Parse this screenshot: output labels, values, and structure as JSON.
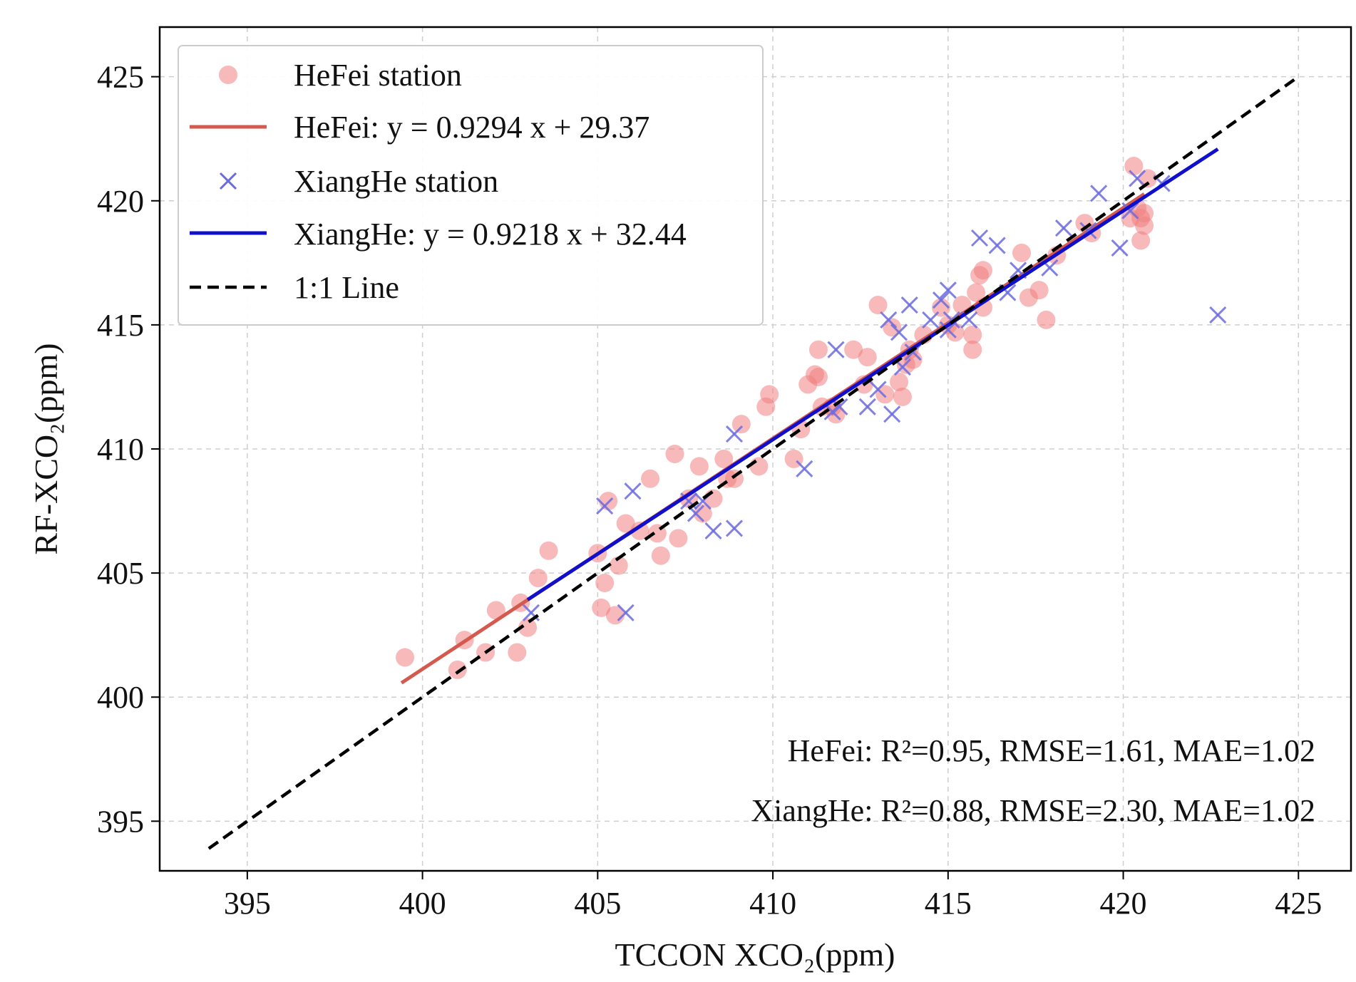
{
  "chart_data": {
    "type": "scatter",
    "xlabel": "TCCON XCO₂(ppm)",
    "ylabel": "RF-XCO₂(ppm)",
    "xlim": [
      392.5,
      426.5
    ],
    "ylim": [
      393,
      427
    ],
    "xticks": [
      395,
      400,
      405,
      410,
      415,
      420,
      425
    ],
    "yticks": [
      395,
      400,
      405,
      410,
      415,
      420,
      425
    ],
    "grid": true,
    "legend_position": "top-left",
    "series": [
      {
        "name": "HeFei station",
        "kind": "points",
        "marker": "circle",
        "color": "#f08080",
        "points": [
          [
            399.5,
            401.6
          ],
          [
            401.0,
            401.1
          ],
          [
            401.2,
            402.3
          ],
          [
            401.8,
            401.8
          ],
          [
            402.1,
            403.5
          ],
          [
            402.7,
            401.8
          ],
          [
            402.8,
            403.8
          ],
          [
            403.0,
            402.8
          ],
          [
            403.3,
            404.8
          ],
          [
            403.6,
            405.9
          ],
          [
            405.0,
            405.8
          ],
          [
            405.1,
            403.6
          ],
          [
            405.2,
            404.6
          ],
          [
            405.3,
            407.9
          ],
          [
            405.5,
            403.3
          ],
          [
            405.6,
            405.3
          ],
          [
            405.8,
            407.0
          ],
          [
            406.2,
            406.7
          ],
          [
            406.5,
            408.8
          ],
          [
            406.7,
            406.6
          ],
          [
            406.8,
            405.7
          ],
          [
            407.2,
            409.8
          ],
          [
            407.3,
            406.4
          ],
          [
            407.6,
            408.0
          ],
          [
            407.9,
            409.3
          ],
          [
            408.0,
            407.4
          ],
          [
            408.3,
            408.0
          ],
          [
            408.6,
            409.6
          ],
          [
            408.7,
            408.8
          ],
          [
            408.9,
            408.8
          ],
          [
            409.1,
            411.0
          ],
          [
            409.6,
            409.3
          ],
          [
            409.8,
            411.7
          ],
          [
            409.9,
            412.2
          ],
          [
            410.6,
            409.6
          ],
          [
            410.8,
            410.8
          ],
          [
            411.0,
            412.6
          ],
          [
            411.2,
            413.0
          ],
          [
            411.3,
            414.0
          ],
          [
            411.3,
            412.9
          ],
          [
            411.4,
            411.7
          ],
          [
            411.7,
            411.7
          ],
          [
            411.8,
            411.4
          ],
          [
            412.3,
            414.0
          ],
          [
            412.6,
            412.6
          ],
          [
            412.7,
            413.7
          ],
          [
            413.0,
            415.8
          ],
          [
            413.2,
            412.2
          ],
          [
            413.4,
            414.9
          ],
          [
            413.6,
            412.7
          ],
          [
            413.7,
            412.1
          ],
          [
            413.8,
            413.4
          ],
          [
            413.9,
            414.0
          ],
          [
            414.0,
            413.6
          ],
          [
            414.3,
            414.6
          ],
          [
            414.8,
            415.7
          ],
          [
            415.0,
            415.0
          ],
          [
            415.2,
            414.7
          ],
          [
            415.4,
            415.8
          ],
          [
            415.7,
            414.6
          ],
          [
            415.7,
            414.0
          ],
          [
            415.8,
            416.3
          ],
          [
            415.9,
            417.0
          ],
          [
            416.0,
            415.7
          ],
          [
            416.0,
            417.2
          ],
          [
            417.1,
            417.9
          ],
          [
            417.3,
            416.1
          ],
          [
            417.6,
            416.4
          ],
          [
            417.8,
            415.2
          ],
          [
            418.1,
            417.8
          ],
          [
            418.9,
            419.1
          ],
          [
            419.1,
            418.7
          ],
          [
            420.2,
            419.3
          ],
          [
            420.3,
            421.4
          ],
          [
            420.4,
            419.7
          ],
          [
            420.5,
            418.4
          ],
          [
            420.5,
            419.3
          ],
          [
            420.6,
            419.0
          ],
          [
            420.6,
            419.5
          ],
          [
            420.7,
            420.9
          ]
        ]
      },
      {
        "name": "HeFei: y = 0.9294 x + 29.37",
        "kind": "line",
        "color": "#d45a50",
        "x_range": [
          399.4,
          420.6
        ]
      },
      {
        "name": "XiangHe station",
        "kind": "points",
        "marker": "x",
        "color": "#6b6be0",
        "points": [
          [
            403.1,
            403.4
          ],
          [
            405.2,
            407.7
          ],
          [
            405.8,
            403.4
          ],
          [
            406.0,
            408.3
          ],
          [
            407.6,
            407.9
          ],
          [
            407.8,
            407.4
          ],
          [
            408.0,
            407.9
          ],
          [
            408.3,
            406.7
          ],
          [
            408.9,
            406.8
          ],
          [
            408.9,
            410.6
          ],
          [
            410.9,
            409.2
          ],
          [
            411.7,
            411.5
          ],
          [
            411.8,
            414.0
          ],
          [
            411.9,
            411.7
          ],
          [
            412.7,
            411.7
          ],
          [
            413.0,
            412.4
          ],
          [
            413.3,
            415.2
          ],
          [
            413.4,
            411.4
          ],
          [
            413.6,
            414.7
          ],
          [
            413.7,
            413.3
          ],
          [
            413.9,
            415.8
          ],
          [
            414.0,
            413.9
          ],
          [
            414.5,
            415.2
          ],
          [
            414.8,
            416.0
          ],
          [
            415.0,
            416.4
          ],
          [
            415.0,
            414.8
          ],
          [
            415.1,
            415.2
          ],
          [
            415.6,
            415.2
          ],
          [
            415.9,
            418.5
          ],
          [
            416.4,
            418.2
          ],
          [
            416.7,
            416.3
          ],
          [
            417.0,
            417.2
          ],
          [
            417.9,
            417.3
          ],
          [
            418.3,
            418.9
          ],
          [
            419.0,
            418.8
          ],
          [
            419.3,
            420.3
          ],
          [
            419.9,
            418.1
          ],
          [
            420.2,
            419.6
          ],
          [
            420.4,
            420.9
          ],
          [
            421.1,
            420.7
          ],
          [
            422.7,
            415.4
          ]
        ]
      },
      {
        "name": "XiangHe: y = 0.9218 x + 32.44",
        "kind": "line",
        "color": "#1010cc",
        "x_range": [
          403.0,
          422.7
        ]
      },
      {
        "name": "1:1 Line",
        "kind": "line",
        "color": "#000000",
        "x_range": [
          393.9,
          425.0
        ]
      }
    ],
    "fits": {
      "HeFei": {
        "slope": 0.9294,
        "intercept": 29.37
      },
      "XiangHe": {
        "slope": 0.9218,
        "intercept": 32.44
      },
      "identity": {
        "slope": 1,
        "intercept": 0
      }
    },
    "annotations": [
      "HeFei: R²=0.95, RMSE=1.61, MAE=1.02",
      "XiangHe: R²=0.88, RMSE=2.30, MAE=1.02"
    ]
  }
}
